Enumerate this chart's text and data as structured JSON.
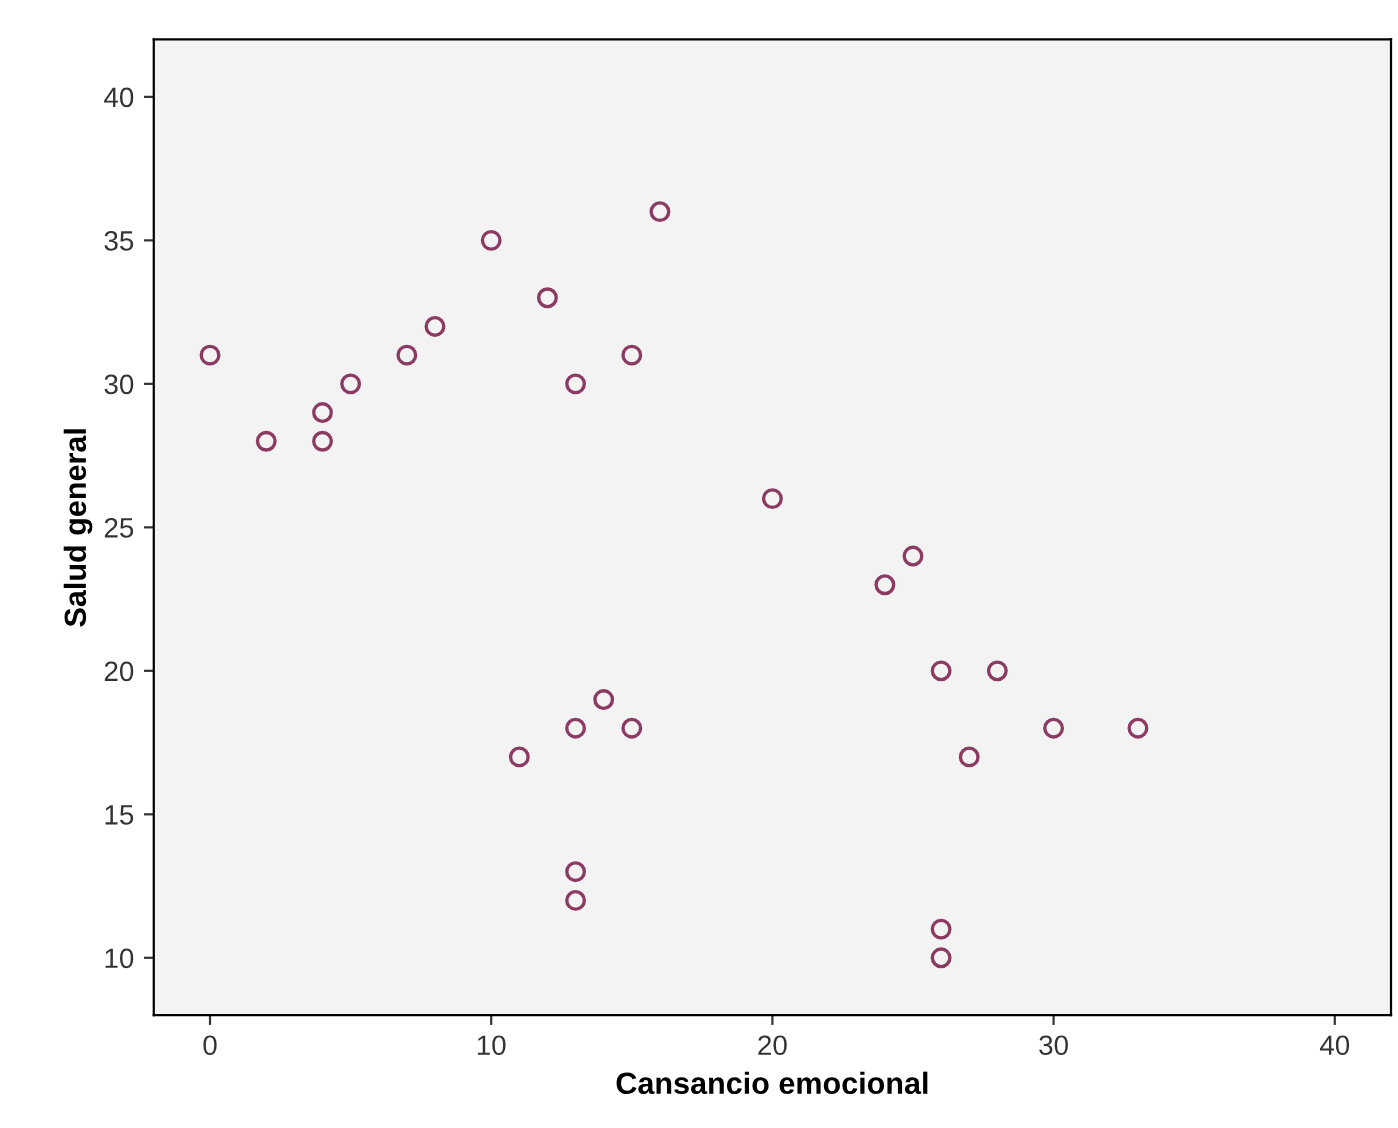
{
  "chart_data": {
    "type": "scatter",
    "xlabel": "Cansancio emocional",
    "ylabel": "Salud general",
    "x": [
      0,
      2,
      4,
      4,
      5,
      7,
      8,
      10,
      12,
      13,
      15,
      16,
      20,
      24,
      25,
      26,
      28,
      30,
      33,
      27,
      26,
      26,
      11,
      13,
      14,
      15,
      13,
      13
    ],
    "series": [
      {
        "color": "#8b3a62",
        "values": [
          31,
          28,
          29,
          28,
          30,
          31,
          32,
          35,
          33,
          30,
          31,
          36,
          26,
          23,
          24,
          20,
          20,
          18,
          18,
          17,
          11,
          10,
          17,
          18,
          19,
          18,
          13,
          12
        ]
      }
    ],
    "xlim": [
      -2,
      42
    ],
    "ylim": [
      8,
      42
    ],
    "xticks": [
      0,
      10,
      20,
      30,
      40
    ],
    "yticks": [
      10,
      15,
      20,
      25,
      30,
      35,
      40
    ],
    "marker": "circle",
    "grid": false,
    "legend": false
  }
}
